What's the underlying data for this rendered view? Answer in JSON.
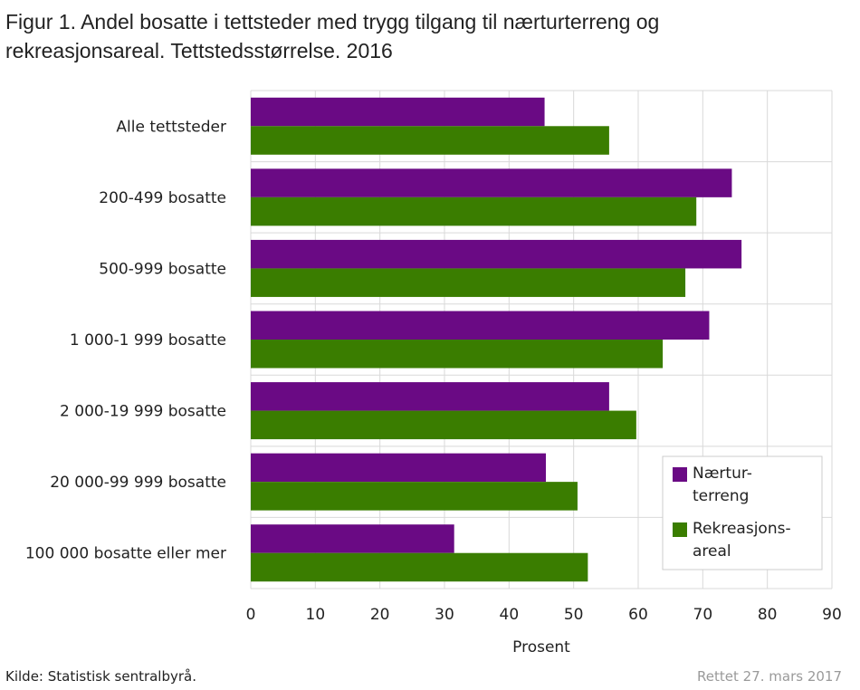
{
  "title_lines": [
    "Figur 1. Andel bosatte i tettsteder med trygg tilgang til nærturterreng og",
    "rekreasjonsareal. Tettstedsstørrelse. 2016"
  ],
  "source": "Kilde: Statistisk sentralbyrå.",
  "updated": "Rettet 27. mars 2017",
  "colors": {
    "purple": "#6a0a84",
    "green": "#3a7d00",
    "grid": "#d9d9d9"
  },
  "chart_data": {
    "type": "bar",
    "orientation": "horizontal",
    "categories": [
      "Alle tettsteder",
      "200-499 bosatte",
      "500-999 bosatte",
      "1 000-1 999 bosatte",
      "2 000-19 999 bosatte",
      "20 000-99 999 bosatte",
      "100 000 bosatte eller mer"
    ],
    "series": [
      {
        "name": "Nærtur-\nterreng",
        "legend_lines": [
          "Nærtur-",
          "terreng"
        ],
        "color": "#6a0a84",
        "values": [
          45.5,
          74.5,
          76,
          71,
          55.5,
          45.7,
          31.5
        ]
      },
      {
        "name": "Rekreasjons-\nareal",
        "legend_lines": [
          "Rekreasjons-",
          "areal"
        ],
        "color": "#3a7d00",
        "values": [
          55.5,
          69,
          67.3,
          63.8,
          59.7,
          50.6,
          52.2
        ]
      }
    ],
    "xlabel": "Prosent",
    "xlim": [
      0,
      90
    ],
    "xticks": [
      0,
      10,
      20,
      30,
      40,
      50,
      60,
      70,
      80,
      90
    ],
    "grid": true,
    "legend_position": "bottom-right"
  }
}
